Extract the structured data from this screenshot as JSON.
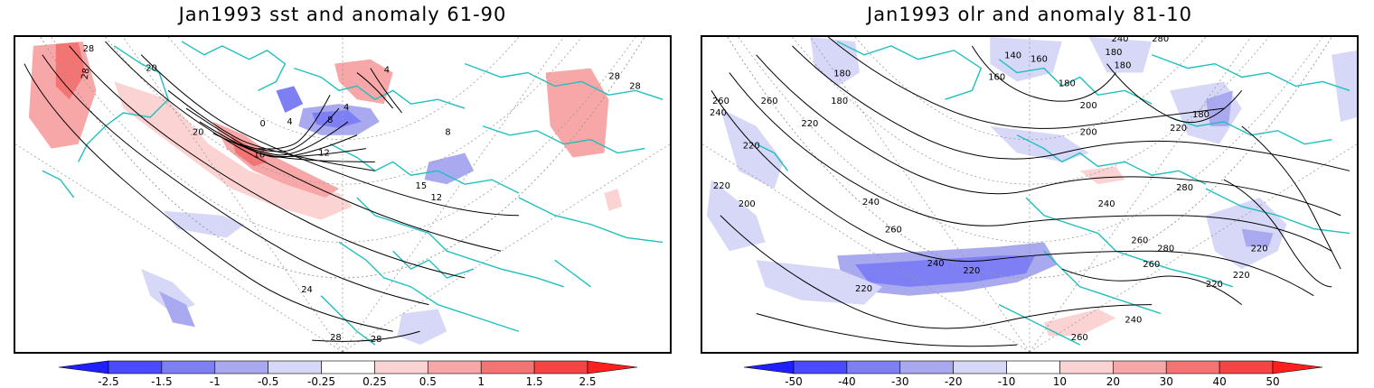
{
  "panels": [
    {
      "title": "Jan1993 sst and anomaly 61-90",
      "colorbar": {
        "labels": [
          "-2.5",
          "-1.5",
          "-1",
          "-0.5",
          "-0.25",
          "0.25",
          "0.5",
          "1",
          "1.5",
          "2.5"
        ],
        "colors": [
          "#1f1fff",
          "#4a4aff",
          "#7f7ff5",
          "#a9a9f0",
          "#d7d7f7",
          "#ffffff",
          "#fbd3d3",
          "#f7a7a7",
          "#f47373",
          "#f44545",
          "#ff1f1f"
        ]
      },
      "contour_labels": [
        "28",
        "28",
        "28",
        "28",
        "20",
        "0",
        "4",
        "4",
        "8",
        "4",
        "12",
        "16",
        "20",
        "15",
        "8",
        "24",
        "28",
        "28",
        "12"
      ]
    },
    {
      "title": "Jan1993 olr and anomaly 81-10",
      "colorbar": {
        "labels": [
          "-50",
          "-40",
          "-30",
          "-20",
          "-10",
          "10",
          "20",
          "30",
          "40",
          "50"
        ],
        "colors": [
          "#1f1fff",
          "#4a4aff",
          "#7f7ff5",
          "#a9a9f0",
          "#d7d7f7",
          "#ffffff",
          "#fbd3d3",
          "#f7a7a7",
          "#f47373",
          "#f44545",
          "#ff1f1f"
        ]
      },
      "contour_labels": [
        "180",
        "180",
        "140",
        "160",
        "180",
        "180",
        "160",
        "180",
        "200",
        "240",
        "280",
        "220",
        "260",
        "260",
        "240",
        "220",
        "220",
        "200",
        "220",
        "240",
        "260",
        "240",
        "220",
        "220",
        "240",
        "260",
        "280",
        "260",
        "280",
        "220",
        "220",
        "260",
        "240",
        "220",
        "180",
        "200"
      ]
    }
  ]
}
